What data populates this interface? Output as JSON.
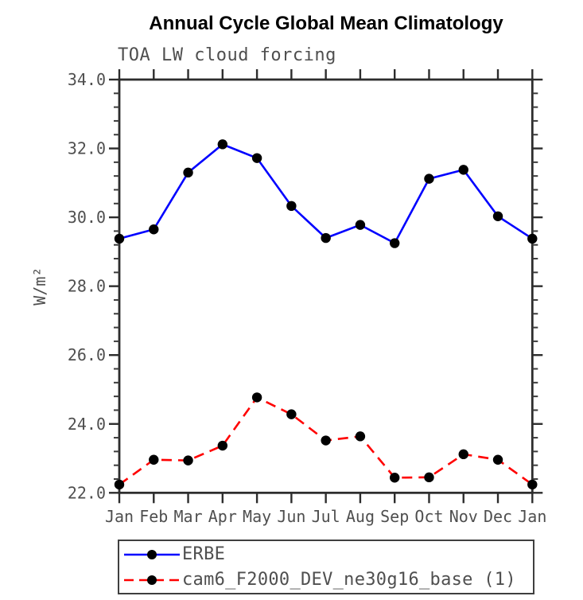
{
  "page": {
    "background": "#ffffff"
  },
  "chart_data": {
    "type": "line",
    "title": "Annual Cycle Global Mean Climatology",
    "subtitle": "TOA LW cloud forcing",
    "xlabel": "",
    "ylabel": "W/m²",
    "x_tick_labels": [
      "Jan",
      "Feb",
      "Mar",
      "Apr",
      "May",
      "Jun",
      "Jul",
      "Aug",
      "Sep",
      "Oct",
      "Nov",
      "Dec",
      "Jan"
    ],
    "ylim": [
      22.0,
      34.0
    ],
    "y_major_ticks": [
      22.0,
      24.0,
      26.0,
      28.0,
      30.0,
      32.0,
      34.0
    ],
    "y_tick_labels": [
      "22.0",
      "24.0",
      "26.0",
      "28.0",
      "30.0",
      "32.0",
      "34.0"
    ],
    "y_minor_step": 0.4,
    "grid": false,
    "legend_position": "bottom-left-box",
    "series": [
      {
        "name": "ERBE",
        "color": "#0000ff",
        "line_style": "solid",
        "marker": "filled-circle",
        "marker_color": "#000000",
        "values": [
          29.38,
          29.65,
          31.3,
          32.12,
          31.72,
          30.33,
          29.4,
          29.78,
          29.25,
          31.12,
          31.38,
          30.03,
          29.38
        ]
      },
      {
        "name": "cam6_F2000_DEV_ne30g16_base (1)",
        "color": "#ff0000",
        "line_style": "dashed",
        "marker": "filled-circle",
        "marker_color": "#000000",
        "values": [
          22.24,
          22.96,
          22.94,
          23.37,
          24.77,
          24.28,
          23.52,
          23.64,
          22.44,
          22.45,
          23.12,
          22.96,
          22.24
        ]
      }
    ]
  },
  "colors": {
    "axis": "#2d2d2d",
    "tick_text": "#4f4f4f",
    "title_text": "#000000"
  }
}
